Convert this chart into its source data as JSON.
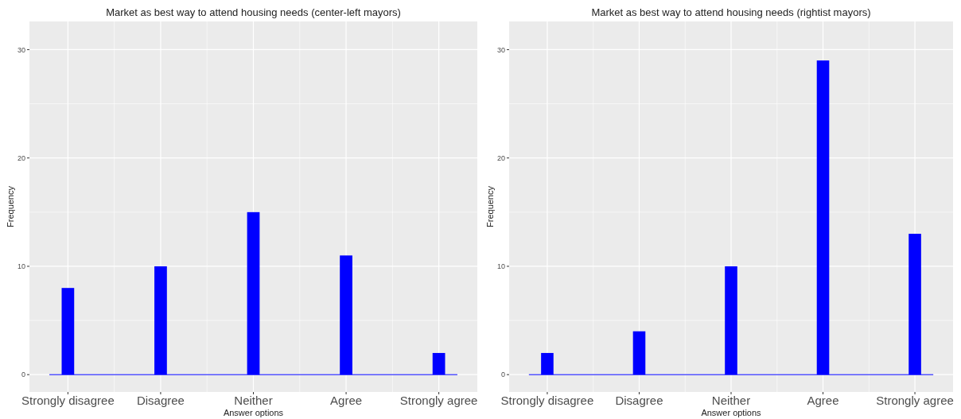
{
  "chart_data": [
    {
      "type": "bar",
      "title": "Market as best way to attend housing needs (center-left mayors)",
      "xlabel": "Answer options",
      "ylabel": "Frequency",
      "categories": [
        "Strongly disagree",
        "Disagree",
        "Neither",
        "Agree",
        "Strongly agree"
      ],
      "values": [
        8,
        10,
        15,
        11,
        2
      ],
      "color": "#0000ff",
      "ylim": [
        -1.6,
        32.6
      ],
      "yticks": [
        0,
        10,
        20,
        30
      ],
      "grid": true,
      "ref_lines": [
        {
          "axis": "y",
          "value": 0,
          "color": "#0000ff"
        }
      ]
    },
    {
      "type": "bar",
      "title": "Market as best way to attend housing needs (rightist mayors)",
      "xlabel": "Answer options",
      "ylabel": "Frequency",
      "categories": [
        "Strongly disagree",
        "Disagree",
        "Neither",
        "Agree",
        "Strongly agree"
      ],
      "values": [
        2,
        4,
        10,
        29,
        13
      ],
      "color": "#0000ff",
      "ylim": [
        -1.6,
        32.6
      ],
      "yticks": [
        0,
        10,
        20,
        30
      ],
      "grid": true,
      "ref_lines": [
        {
          "axis": "y",
          "value": 0,
          "color": "#0000ff"
        }
      ]
    }
  ]
}
